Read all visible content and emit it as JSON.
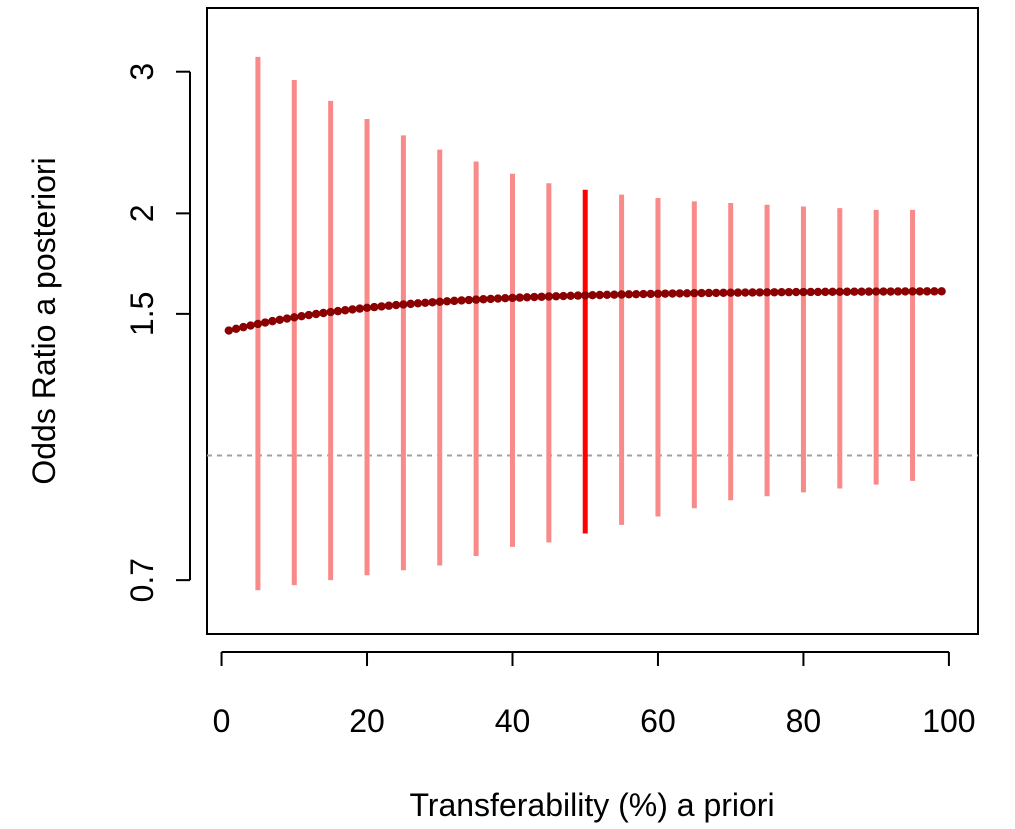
{
  "chart_data": {
    "type": "scatter",
    "title": "",
    "xlabel": "Transferability (%) a priori",
    "ylabel": "Odds Ratio a posteriori",
    "xlim": [
      -2,
      104
    ],
    "ylim_log": [
      0.6,
      3.6
    ],
    "y_scale": "log",
    "x_ticks": [
      0,
      20,
      40,
      60,
      80,
      100
    ],
    "x_tick_labels": [
      "0",
      "20",
      "40",
      "60",
      "80",
      "100"
    ],
    "y_ticks": [
      0.7,
      1.5,
      2,
      3
    ],
    "y_tick_labels": [
      "0.7",
      "1.5",
      "2",
      "3"
    ],
    "reference_line": {
      "y": 1.0,
      "style": "dashed",
      "color": "#a0a0a0"
    },
    "grid": false,
    "point_series": {
      "color": "#8b0000",
      "x": [
        1,
        2,
        3,
        4,
        5,
        6,
        7,
        8,
        9,
        10,
        11,
        12,
        13,
        14,
        15,
        16,
        17,
        18,
        19,
        20,
        21,
        22,
        23,
        24,
        25,
        26,
        27,
        28,
        29,
        30,
        31,
        32,
        33,
        34,
        35,
        36,
        37,
        38,
        39,
        40,
        41,
        42,
        43,
        44,
        45,
        46,
        47,
        48,
        49,
        50,
        51,
        52,
        53,
        54,
        55,
        56,
        57,
        58,
        59,
        60,
        61,
        62,
        63,
        64,
        65,
        66,
        67,
        68,
        69,
        70,
        71,
        72,
        73,
        74,
        75,
        76,
        77,
        78,
        79,
        80,
        81,
        82,
        83,
        84,
        85,
        86,
        87,
        88,
        89,
        90,
        91,
        92,
        93,
        94,
        95,
        96,
        97,
        98,
        99
      ],
      "y_formula_note": "",
      "y_start": 1.43,
      "y_end": 1.6
    },
    "interval_series": {
      "color": "#f88a8a",
      "highlight_color": "#ff0000",
      "x": [
        5,
        10,
        15,
        20,
        25,
        30,
        35,
        40,
        45,
        50,
        55,
        60,
        65,
        70,
        75,
        80,
        85,
        90,
        95
      ],
      "lower": [
        0.68,
        0.69,
        0.7,
        0.71,
        0.72,
        0.73,
        0.75,
        0.77,
        0.78,
        0.8,
        0.82,
        0.84,
        0.86,
        0.88,
        0.89,
        0.9,
        0.91,
        0.92,
        0.93
      ],
      "upper": [
        3.13,
        2.93,
        2.76,
        2.62,
        2.5,
        2.4,
        2.32,
        2.24,
        2.18,
        2.14,
        2.11,
        2.09,
        2.07,
        2.06,
        2.05,
        2.04,
        2.03,
        2.02,
        2.02
      ],
      "highlight_x": 50
    }
  }
}
